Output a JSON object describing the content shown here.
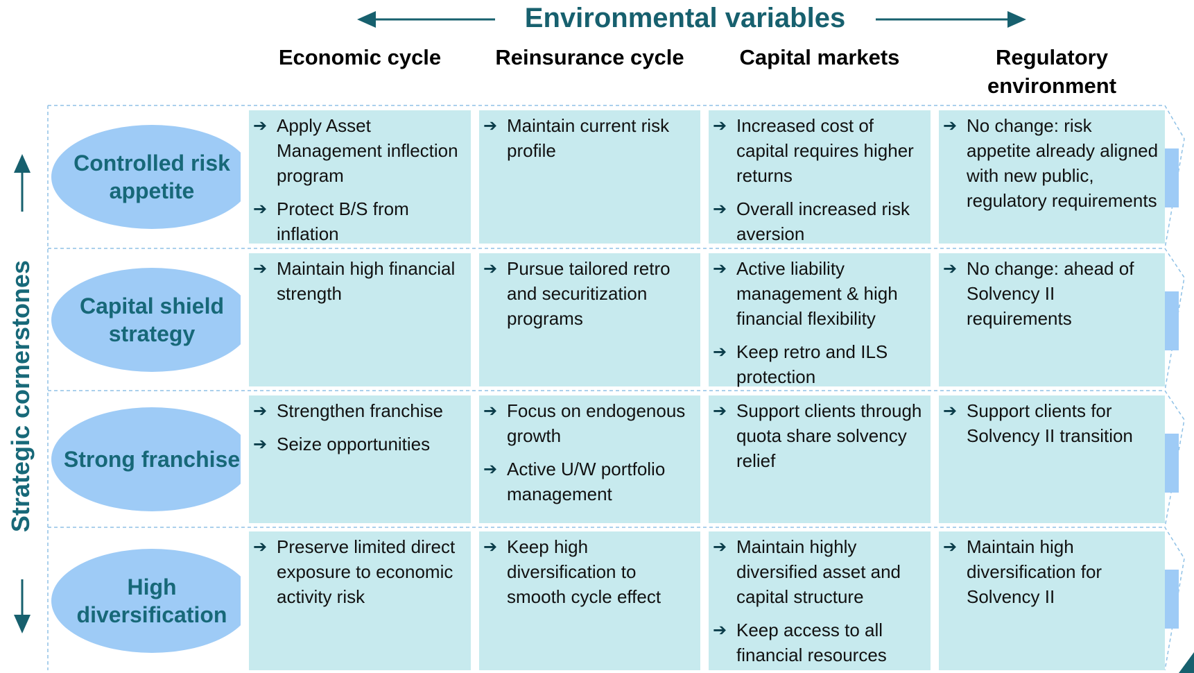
{
  "title": "Environmental variables",
  "side_label": "Strategic cornerstones",
  "columns": [
    "Economic cycle",
    "Reinsurance cycle",
    "Capital markets",
    "Regulatory environment"
  ],
  "rows": [
    {
      "label": "Controlled risk appetite",
      "cells": [
        [
          "Apply Asset Management inflection program",
          "Protect B/S from inflation"
        ],
        [
          "Maintain current risk profile"
        ],
        [
          "Increased cost of capital requires higher returns",
          "Overall increased risk aversion"
        ],
        [
          "No change: risk appetite already aligned with new public, regulatory requirements"
        ]
      ]
    },
    {
      "label": "Capital shield strategy",
      "cells": [
        [
          "Maintain high financial strength"
        ],
        [
          "Pursue tailored retro and securitization programs"
        ],
        [
          "Active liability management & high financial flexibility",
          "Keep retro and ILS protection"
        ],
        [
          "No change: ahead of Solvency II requirements"
        ]
      ]
    },
    {
      "label": "Strong franchise",
      "cells": [
        [
          "Strengthen franchise",
          "Seize opportunities"
        ],
        [
          "Focus on endogenous growth",
          "Active U/W portfolio management"
        ],
        [
          "Support clients through quota share solvency relief"
        ],
        [
          "Support clients for Solvency II transition"
        ]
      ]
    },
    {
      "label": "High diversification",
      "cells": [
        [
          "Preserve limited direct exposure to economic activity risk"
        ],
        [
          "Keep high diversification to smooth cycle effect"
        ],
        [
          "Maintain highly diversified asset and capital structure",
          "Keep access to all financial resources"
        ],
        [
          "Maintain high diversification for Solvency II"
        ]
      ]
    }
  ]
}
